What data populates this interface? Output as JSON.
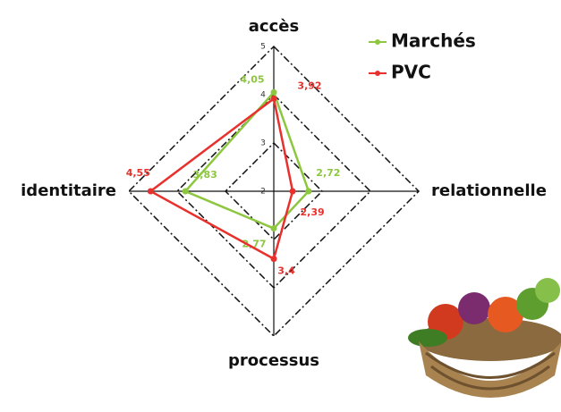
{
  "chart_data": {
    "type": "radar",
    "axes": [
      "accès",
      "relationnelle",
      "processus",
      "identitaire"
    ],
    "series": [
      {
        "name": "Marchés",
        "color": "#8dc63f",
        "values": [
          4.05,
          2.72,
          2.77,
          3.83
        ],
        "value_labels": [
          "4,05",
          "2,72",
          "2,77",
          "3,83"
        ]
      },
      {
        "name": "PVC",
        "color": "#e8312d",
        "values": [
          3.92,
          2.39,
          3.4,
          4.55
        ],
        "value_labels": [
          "3,92",
          "2,39",
          "3,4",
          "4,55"
        ]
      }
    ],
    "rlim": [
      2,
      5
    ],
    "rticks": [
      2,
      3,
      4,
      5
    ],
    "legend": "upper right"
  }
}
